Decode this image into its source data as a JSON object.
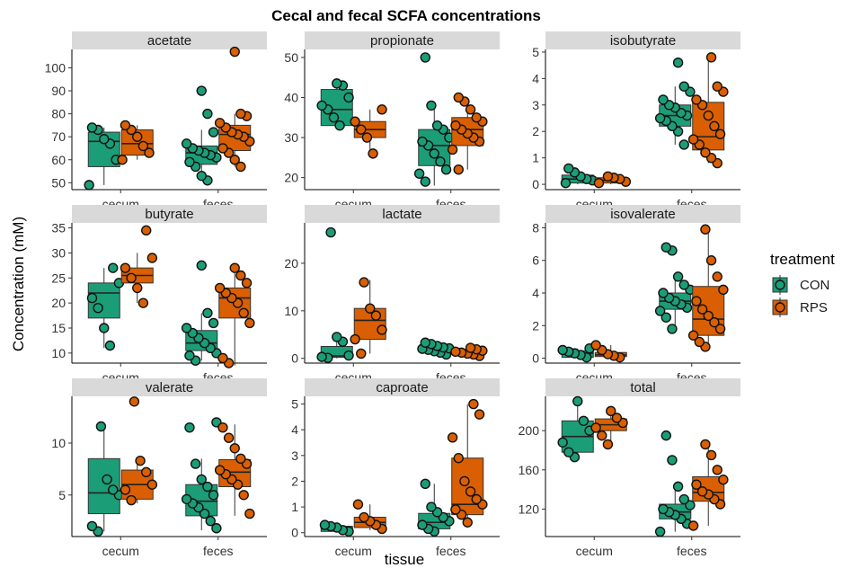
{
  "colors": {
    "CON": "#1b9e77",
    "RPS": "#d95f02",
    "strip": "#d9d9d9"
  },
  "chart_data": {
    "type": "boxplot",
    "title": "Cecal and fecal SCFA concentrations",
    "xlabel": "tissue",
    "ylabel": "Concentration (mM)",
    "categories": [
      "cecum",
      "feces"
    ],
    "legend": {
      "title": "treatment",
      "position": "right",
      "entries": [
        "CON",
        "RPS"
      ]
    },
    "panels": [
      {
        "name": "acetate",
        "ylim": [
          47,
          108
        ],
        "ticks": [
          50,
          60,
          70,
          80,
          90,
          100
        ],
        "tick_labels": [
          "50",
          "60",
          "70",
          "80",
          "90",
          "100"
        ],
        "groups": [
          {
            "tissue": "cecum",
            "treatment": "CON",
            "q1": 57,
            "median": 68,
            "q3": 72,
            "whisker_low": 49,
            "whisker_high": 74,
            "points": [
              49,
              60,
              67,
              69,
              73,
              74
            ]
          },
          {
            "tissue": "cecum",
            "treatment": "RPS",
            "q1": 62,
            "median": 67,
            "q3": 73,
            "whisker_low": 60,
            "whisker_high": 75,
            "points": [
              60,
              63,
              66,
              70,
              73,
              75
            ]
          },
          {
            "tissue": "feces",
            "treatment": "CON",
            "q1": 58,
            "median": 63,
            "q3": 66,
            "whisker_low": 51,
            "whisker_high": 73,
            "points": [
              51,
              53,
              57,
              59,
              61,
              62,
              63,
              64,
              65,
              67,
              72,
              80,
              90
            ]
          },
          {
            "tissue": "feces",
            "treatment": "RPS",
            "q1": 64,
            "median": 71,
            "q3": 75,
            "whisker_low": 57,
            "whisker_high": 80,
            "points": [
              57,
              60,
              63,
              65,
              68,
              70,
              71,
              72,
              74,
              76,
              79,
              80,
              107
            ]
          }
        ]
      },
      {
        "name": "propionate",
        "ylim": [
          17,
          52
        ],
        "ticks": [
          20,
          30,
          40,
          50
        ],
        "tick_labels": [
          "20",
          "30",
          "40",
          "50"
        ],
        "groups": [
          {
            "tissue": "cecum",
            "treatment": "CON",
            "q1": 33,
            "median": 37,
            "q3": 42,
            "whisker_low": 32.5,
            "whisker_high": 44,
            "points": [
              33,
              35,
              37,
              38,
              40,
              43,
              43.5
            ]
          },
          {
            "tissue": "cecum",
            "treatment": "RPS",
            "q1": 30,
            "median": 32,
            "q3": 34,
            "whisker_low": 26,
            "whisker_high": 37,
            "points": [
              26,
              30,
              32,
              34,
              37
            ]
          },
          {
            "tissue": "feces",
            "treatment": "CON",
            "q1": 23,
            "median": 28,
            "q3": 32,
            "whisker_low": 18,
            "whisker_high": 38,
            "points": [
              19,
              21,
              22,
              24,
              26,
              28,
              29,
              30,
              32,
              33,
              38,
              50
            ]
          },
          {
            "tissue": "feces",
            "treatment": "RPS",
            "q1": 28,
            "median": 32,
            "q3": 35,
            "whisker_low": 22,
            "whisker_high": 40,
            "points": [
              22,
              27,
              29,
              30,
              31,
              32,
              33,
              34,
              35,
              37,
              39,
              40
            ]
          }
        ]
      },
      {
        "name": "isobutyrate",
        "ylim": [
          -0.2,
          5.1
        ],
        "ticks": [
          0,
          1,
          2,
          3,
          4,
          5
        ],
        "tick_labels": [
          "0",
          "1",
          "2",
          "3",
          "4",
          "5"
        ],
        "groups": [
          {
            "tissue": "cecum",
            "treatment": "CON",
            "q1": 0.05,
            "median": 0.2,
            "q3": 0.35,
            "whisker_low": 0,
            "whisker_high": 0.6,
            "points": [
              0.05,
              0.15,
              0.2,
              0.3,
              0.45,
              0.6
            ]
          },
          {
            "tissue": "cecum",
            "treatment": "RPS",
            "q1": 0.05,
            "median": 0.15,
            "q3": 0.25,
            "whisker_low": 0,
            "whisker_high": 0.35,
            "points": [
              0.05,
              0.1,
              0.2,
              0.25,
              0.3
            ]
          },
          {
            "tissue": "feces",
            "treatment": "CON",
            "q1": 2.2,
            "median": 2.6,
            "q3": 3.0,
            "whisker_low": 1.5,
            "whisker_high": 3.7,
            "points": [
              1.5,
              2.0,
              2.2,
              2.4,
              2.5,
              2.6,
              2.7,
              2.9,
              3.0,
              3.2,
              3.5,
              3.7,
              4.6
            ]
          },
          {
            "tissue": "feces",
            "treatment": "RPS",
            "q1": 1.3,
            "median": 1.8,
            "q3": 3.1,
            "whisker_low": 0.8,
            "whisker_high": 4.9,
            "points": [
              0.8,
              1.0,
              1.2,
              1.5,
              1.7,
              1.9,
              2.2,
              2.6,
              3.0,
              3.2,
              3.5,
              3.7,
              4.8
            ]
          }
        ]
      },
      {
        "name": "butyrate",
        "ylim": [
          8,
          36
        ],
        "ticks": [
          10,
          15,
          20,
          25,
          30,
          35
        ],
        "tick_labels": [
          "10",
          "15",
          "20",
          "25",
          "30",
          "35"
        ],
        "groups": [
          {
            "tissue": "cecum",
            "treatment": "CON",
            "q1": 17,
            "median": 22,
            "q3": 24,
            "whisker_low": 11,
            "whisker_high": 27,
            "points": [
              11.5,
              15,
              19,
              21,
              24,
              27
            ]
          },
          {
            "tissue": "cecum",
            "treatment": "RPS",
            "q1": 24,
            "median": 25.5,
            "q3": 27,
            "whisker_low": 20,
            "whisker_high": 30,
            "points": [
              20,
              23,
              25,
              27,
              29,
              34.5
            ]
          },
          {
            "tissue": "feces",
            "treatment": "CON",
            "q1": 10.5,
            "median": 12,
            "q3": 14.5,
            "whisker_low": 8.5,
            "whisker_high": 18,
            "points": [
              8.5,
              9.5,
              10,
              11,
              12,
              13,
              14,
              15,
              16,
              18,
              27.5
            ]
          },
          {
            "tissue": "feces",
            "treatment": "RPS",
            "q1": 17,
            "median": 21,
            "q3": 23,
            "whisker_low": 7.5,
            "whisker_high": 26,
            "points": [
              8,
              9,
              16,
              18,
              20,
              21,
              22,
              23,
              24,
              25.5,
              27
            ]
          }
        ]
      },
      {
        "name": "lactate",
        "ylim": [
          -1,
          28.5
        ],
        "ticks": [
          0,
          10,
          20
        ],
        "tick_labels": [
          "0",
          "10",
          "20"
        ],
        "groups": [
          {
            "tissue": "cecum",
            "treatment": "CON",
            "q1": 0.2,
            "median": 0.5,
            "q3": 2.5,
            "whisker_low": 0,
            "whisker_high": 4.5,
            "points": [
              0.1,
              0.3,
              0.6,
              3.5,
              4.5,
              26.5
            ]
          },
          {
            "tissue": "cecum",
            "treatment": "RPS",
            "q1": 4,
            "median": 8,
            "q3": 10.5,
            "whisker_low": 1,
            "whisker_high": 16.5,
            "points": [
              1,
              4,
              6,
              9,
              10.5,
              16
            ]
          },
          {
            "tissue": "feces",
            "treatment": "CON",
            "q1": 1.5,
            "median": 2,
            "q3": 2.5,
            "whisker_low": 0.5,
            "whisker_high": 3.2,
            "points": [
              0.8,
              1.2,
              1.5,
              1.8,
              2,
              2.1,
              2.3,
              2.6,
              3,
              3.3
            ]
          },
          {
            "tissue": "feces",
            "treatment": "RPS",
            "q1": 0.8,
            "median": 1.2,
            "q3": 1.7,
            "whisker_low": 0.3,
            "whisker_high": 2.3,
            "points": [
              0.5,
              0.8,
              1,
              1.2,
              1.4,
              1.6,
              1.9,
              2.2
            ]
          }
        ]
      },
      {
        "name": "isovalerate",
        "ylim": [
          -0.3,
          8.3
        ],
        "ticks": [
          0,
          2,
          4,
          6,
          8
        ],
        "tick_labels": [
          "0",
          "2",
          "4",
          "6",
          "8"
        ],
        "groups": [
          {
            "tissue": "cecum",
            "treatment": "CON",
            "q1": 0.05,
            "median": 0.3,
            "q3": 0.45,
            "whisker_low": 0,
            "whisker_high": 0.6,
            "points": [
              0.05,
              0.2,
              0.3,
              0.4,
              0.5,
              0.6
            ]
          },
          {
            "tissue": "cecum",
            "treatment": "RPS",
            "q1": 0.1,
            "median": 0.2,
            "q3": 0.35,
            "whisker_low": 0,
            "whisker_high": 0.8,
            "points": [
              0.05,
              0.15,
              0.25,
              0.5,
              0.8
            ]
          },
          {
            "tissue": "feces",
            "treatment": "CON",
            "q1": 3.0,
            "median": 3.5,
            "q3": 4.0,
            "whisker_low": 1.7,
            "whisker_high": 5.0,
            "points": [
              1.8,
              2.5,
              2.9,
              3.1,
              3.3,
              3.5,
              3.7,
              4.0,
              4.2,
              4.5,
              5.0,
              6.6,
              6.8
            ]
          },
          {
            "tissue": "feces",
            "treatment": "RPS",
            "q1": 1.4,
            "median": 2.4,
            "q3": 4.4,
            "whisker_low": 0.6,
            "whisker_high": 8.0,
            "points": [
              0.7,
              1.0,
              1.4,
              1.8,
              2.2,
              2.6,
              3.0,
              3.5,
              4.2,
              5.0,
              6.0,
              7.9
            ]
          }
        ]
      },
      {
        "name": "valerate",
        "ylim": [
          1,
          14.5
        ],
        "ticks": [
          5,
          10
        ],
        "tick_labels": [
          "5",
          "10"
        ],
        "groups": [
          {
            "tissue": "cecum",
            "treatment": "CON",
            "q1": 3.2,
            "median": 5.2,
            "q3": 8.5,
            "whisker_low": 1.5,
            "whisker_high": 11.6,
            "points": [
              1.5,
              2.0,
              5.0,
              5.5,
              6.5,
              11.6
            ]
          },
          {
            "tissue": "cecum",
            "treatment": "RPS",
            "q1": 4.6,
            "median": 6.0,
            "q3": 7.4,
            "whisker_low": 4.2,
            "whisker_high": 8.4,
            "points": [
              4.5,
              5.5,
              6.0,
              7.2,
              8.3,
              14.0
            ]
          },
          {
            "tissue": "feces",
            "treatment": "CON",
            "q1": 3.0,
            "median": 4.4,
            "q3": 6.0,
            "whisker_low": 1.6,
            "whisker_high": 8.5,
            "points": [
              1.8,
              2.5,
              3.2,
              3.8,
              4.2,
              4.6,
              5.0,
              5.8,
              6.5,
              8.0,
              11.5,
              12.0
            ]
          },
          {
            "tissue": "feces",
            "treatment": "RPS",
            "q1": 5.8,
            "median": 7.2,
            "q3": 8.4,
            "whisker_low": 3.0,
            "whisker_high": 11.8,
            "points": [
              3.2,
              5.0,
              6.0,
              6.5,
              7.0,
              7.4,
              8.0,
              8.5,
              9.5,
              10.5,
              11.5
            ]
          }
        ]
      },
      {
        "name": "caproate",
        "ylim": [
          -0.15,
          5.3
        ],
        "ticks": [
          0,
          1,
          2,
          3,
          4,
          5
        ],
        "tick_labels": [
          "0",
          "1",
          "2",
          "3",
          "4",
          "5"
        ],
        "groups": [
          {
            "tissue": "cecum",
            "treatment": "CON",
            "q1": 0.05,
            "median": 0.15,
            "q3": 0.25,
            "whisker_low": 0,
            "whisker_high": 0.3,
            "points": [
              0.05,
              0.1,
              0.2,
              0.25,
              0.3
            ]
          },
          {
            "tissue": "cecum",
            "treatment": "RPS",
            "q1": 0.2,
            "median": 0.4,
            "q3": 0.6,
            "whisker_low": 0.1,
            "whisker_high": 1.1,
            "points": [
              0.15,
              0.3,
              0.45,
              0.6,
              1.1
            ]
          },
          {
            "tissue": "feces",
            "treatment": "CON",
            "q1": 0.15,
            "median": 0.4,
            "q3": 0.75,
            "whisker_low": 0,
            "whisker_high": 1.9,
            "points": [
              0.05,
              0.15,
              0.3,
              0.45,
              0.6,
              0.8,
              1.0,
              1.9
            ]
          },
          {
            "tissue": "feces",
            "treatment": "RPS",
            "q1": 0.7,
            "median": 1.1,
            "q3": 2.9,
            "whisker_low": 0.3,
            "whisker_high": 5.0,
            "points": [
              0.4,
              0.7,
              0.9,
              1.1,
              1.3,
              1.6,
              2.0,
              2.9,
              3.7,
              4.6,
              5.0
            ]
          }
        ]
      },
      {
        "name": "total",
        "ylim": [
          92,
          235
        ],
        "ticks": [
          120,
          160,
          200
        ],
        "tick_labels": [
          "120",
          "160",
          "200"
        ],
        "groups": [
          {
            "tissue": "cecum",
            "treatment": "CON",
            "q1": 178,
            "median": 194,
            "q3": 210,
            "whisker_low": 172,
            "whisker_high": 230,
            "points": [
              173,
              178,
              188,
              200,
              210,
              230
            ]
          },
          {
            "tissue": "cecum",
            "treatment": "RPS",
            "q1": 200,
            "median": 206,
            "q3": 212,
            "whisker_low": 185,
            "whisker_high": 220,
            "points": [
              186,
              195,
              203,
              208,
              213,
              220
            ]
          },
          {
            "tissue": "feces",
            "treatment": "CON",
            "q1": 110,
            "median": 117,
            "q3": 125,
            "whisker_low": 97,
            "whisker_high": 143,
            "points": [
              97,
              105,
              110,
              114,
              117,
              120,
              124,
              130,
              143,
              170,
              195
            ]
          },
          {
            "tissue": "feces",
            "treatment": "RPS",
            "q1": 128,
            "median": 137,
            "q3": 153,
            "whisker_low": 103,
            "whisker_high": 186,
            "points": [
              103,
              125,
              130,
              135,
              138,
              145,
              150,
              160,
              175,
              186
            ]
          }
        ]
      }
    ]
  }
}
